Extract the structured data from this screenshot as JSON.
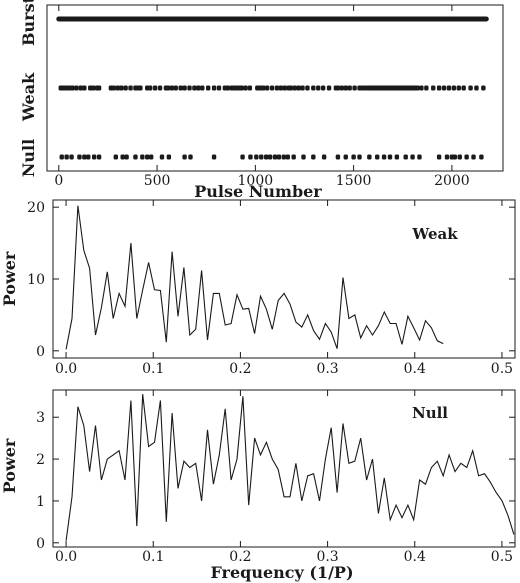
{
  "chart_data": [
    {
      "type": "scatter",
      "panel": "pulse-classification",
      "xlabel": "Pulse Number",
      "ylabel": "",
      "xlim": [
        -60,
        2260
      ],
      "xticks": [
        "0",
        "500",
        "1000",
        "1500",
        "2000"
      ],
      "xtick_values": [
        0,
        500,
        1000,
        1500,
        2000
      ],
      "categories": [
        "Null",
        "Weak",
        "Burst"
      ],
      "burst_range": [
        0,
        2175
      ],
      "weak_pulses": [
        10,
        18,
        27,
        40,
        55,
        70,
        90,
        112,
        130,
        160,
        175,
        195,
        205,
        265,
        280,
        300,
        318,
        340,
        365,
        390,
        405,
        415,
        450,
        465,
        490,
        515,
        545,
        555,
        575,
        595,
        620,
        640,
        665,
        690,
        710,
        730,
        760,
        790,
        815,
        845,
        860,
        880,
        895,
        905,
        918,
        930,
        950,
        972,
        1010,
        1025,
        1040,
        1060,
        1085,
        1110,
        1130,
        1150,
        1170,
        1180,
        1200,
        1220,
        1240,
        1265,
        1295,
        1320,
        1345,
        1375,
        1410,
        1420,
        1440,
        1460,
        1480,
        1505,
        1530,
        1545,
        1560,
        1575,
        1585,
        1595,
        1605,
        1615,
        1625,
        1635,
        1645,
        1655,
        1665,
        1675,
        1685,
        1695,
        1705,
        1715,
        1725,
        1735,
        1745,
        1755,
        1765,
        1775,
        1785,
        1795,
        1805,
        1815,
        1825,
        1845,
        1870,
        1905,
        1935,
        1960,
        1985,
        2010,
        2035,
        2060,
        2095,
        2125,
        2160
      ],
      "null_pulses": [
        15,
        40,
        65,
        105,
        130,
        150,
        180,
        205,
        290,
        325,
        345,
        390,
        425,
        450,
        470,
        525,
        560,
        640,
        670,
        790,
        935,
        975,
        1005,
        1030,
        1055,
        1075,
        1100,
        1120,
        1145,
        1165,
        1195,
        1245,
        1295,
        1350,
        1420,
        1460,
        1500,
        1530,
        1580,
        1620,
        1655,
        1685,
        1720,
        1765,
        1800,
        1835,
        1935,
        1975,
        2000,
        2015,
        2040,
        2075,
        2110,
        2150
      ]
    },
    {
      "type": "line",
      "panel": "weak-spectrum",
      "label": "Weak",
      "xlabel": "",
      "ylabel": "Power",
      "xlim": [
        -0.015,
        0.515
      ],
      "ylim": [
        -1,
        21
      ],
      "xticks": [
        "0.0",
        "0.1",
        "0.2",
        "0.3",
        "0.4",
        "0.5"
      ],
      "xtick_values": [
        0.0,
        0.1,
        0.2,
        0.3,
        0.4,
        0.5
      ],
      "yticks": [
        "0",
        "10",
        "20"
      ],
      "ytick_values": [
        0,
        10,
        20
      ],
      "x_start": 0.0,
      "x_step": 0.00676,
      "values": [
        0.2,
        4.5,
        20.2,
        14.0,
        11.5,
        2.2,
        6.0,
        11.0,
        4.5,
        8.0,
        6.2,
        15.0,
        4.5,
        8.5,
        12.3,
        8.5,
        8.4,
        1.2,
        13.8,
        4.8,
        11.6,
        2.2,
        3.0,
        11.2,
        1.5,
        8.0,
        8.0,
        3.6,
        3.8,
        7.8,
        5.8,
        5.9,
        2.4,
        7.6,
        5.8,
        3.0,
        7.0,
        8.0,
        6.5,
        4.0,
        3.3,
        5.0,
        2.8,
        1.6,
        3.8,
        2.6,
        0.3,
        10.2,
        4.5,
        5.0,
        1.8,
        3.5,
        2.2,
        3.5,
        5.4,
        3.8,
        3.8,
        0.9,
        4.8,
        3.2,
        1.5,
        4.2,
        3.2,
        1.4,
        1.0
      ]
    },
    {
      "type": "line",
      "panel": "null-spectrum",
      "label": "Null",
      "xlabel": "Frequency (1/P)",
      "ylabel": "Power",
      "xlim": [
        -0.015,
        0.515
      ],
      "ylim": [
        -0.1,
        3.65
      ],
      "xticks": [
        "0.0",
        "0.1",
        "0.2",
        "0.3",
        "0.4",
        "0.5"
      ],
      "xtick_values": [
        0.0,
        0.1,
        0.2,
        0.3,
        0.4,
        0.5
      ],
      "yticks": [
        "0",
        "1",
        "2",
        "3"
      ],
      "ytick_values": [
        0,
        1,
        2,
        3
      ],
      "x_start": 0.0,
      "x_step": 0.00676,
      "values": [
        0.05,
        1.1,
        3.25,
        2.8,
        1.7,
        2.8,
        1.5,
        2.0,
        2.1,
        2.2,
        1.5,
        3.4,
        0.4,
        3.55,
        2.3,
        2.4,
        3.4,
        0.5,
        3.1,
        1.3,
        1.95,
        1.8,
        1.9,
        1.0,
        2.7,
        1.4,
        2.1,
        3.2,
        1.5,
        2.0,
        3.5,
        0.9,
        2.5,
        2.1,
        2.4,
        2.0,
        1.75,
        1.1,
        1.1,
        1.9,
        1.0,
        1.6,
        1.65,
        1.0,
        2.0,
        2.75,
        1.2,
        2.85,
        1.9,
        1.95,
        2.5,
        1.5,
        2.0,
        0.7,
        1.55,
        0.55,
        0.9,
        0.6,
        0.9,
        0.55,
        1.5,
        1.4,
        1.8,
        1.95,
        1.6,
        2.1,
        1.7,
        1.9,
        1.8,
        2.2,
        1.6,
        1.65,
        1.45,
        1.2,
        1.0,
        0.65,
        0.2
      ]
    }
  ]
}
